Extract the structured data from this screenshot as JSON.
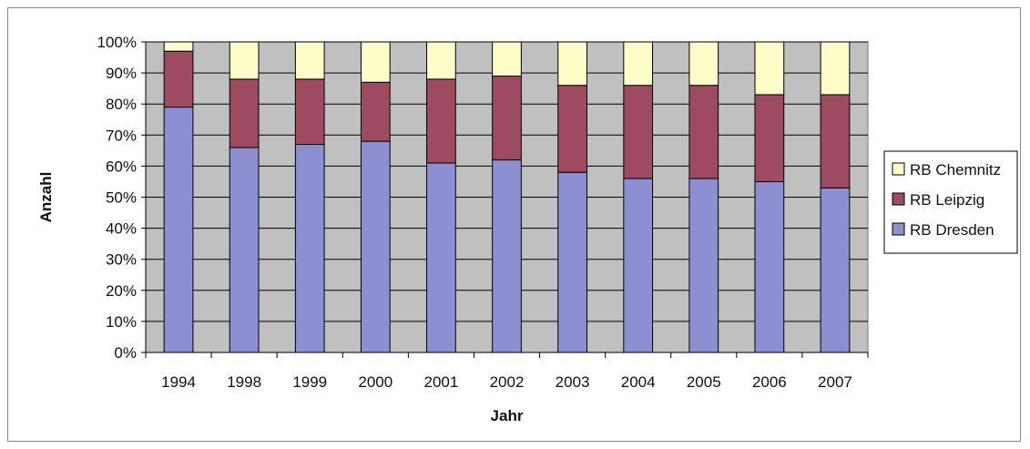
{
  "chart_data": {
    "type": "bar",
    "stacked": "percent",
    "categories": [
      "1994",
      "1998",
      "1999",
      "2000",
      "2001",
      "2002",
      "2003",
      "2004",
      "2005",
      "2006",
      "2007"
    ],
    "series": [
      {
        "name": "RB Dresden",
        "color": "#8c8fd2",
        "values": [
          79,
          66,
          67,
          68,
          61,
          62,
          58,
          56,
          56,
          55,
          53
        ]
      },
      {
        "name": "RB Leipzig",
        "color": "#9e4a61",
        "values": [
          18,
          22,
          21,
          19,
          27,
          27,
          28,
          30,
          30,
          28,
          30
        ]
      },
      {
        "name": "RB Chemnitz",
        "color": "#fffdc8",
        "values": [
          3,
          12,
          12,
          13,
          12,
          11,
          14,
          14,
          14,
          17,
          17
        ]
      }
    ],
    "legend_order": [
      "RB Chemnitz",
      "RB Leipzig",
      "RB Dresden"
    ],
    "title": "",
    "xlabel": "Jahr",
    "ylabel": "Anzahl",
    "ylim": [
      0,
      100
    ],
    "yticks": [
      "0%",
      "10%",
      "20%",
      "30%",
      "40%",
      "50%",
      "60%",
      "70%",
      "80%",
      "90%",
      "100%"
    ],
    "grid": true,
    "plot_background": "#c0c0c0",
    "legend_position": "right"
  }
}
